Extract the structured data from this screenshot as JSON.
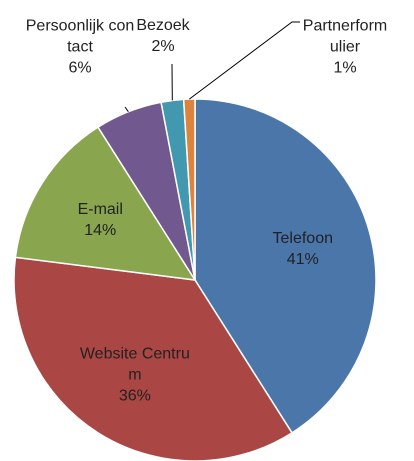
{
  "chart_data": {
    "type": "pie",
    "categories": [
      "Telefoon",
      "Website Centrum",
      "E-mail",
      "Persoonlijk contact",
      "Bezoek",
      "Partnerformulier"
    ],
    "values": [
      41,
      36,
      14,
      6,
      2,
      1
    ],
    "value_labels": [
      "41%",
      "36%",
      "14%",
      "6%",
      "2%",
      "1%"
    ],
    "colors": [
      "#4a76aa",
      "#aa4643",
      "#89a54e",
      "#71588f",
      "#4198af",
      "#db843d"
    ]
  }
}
